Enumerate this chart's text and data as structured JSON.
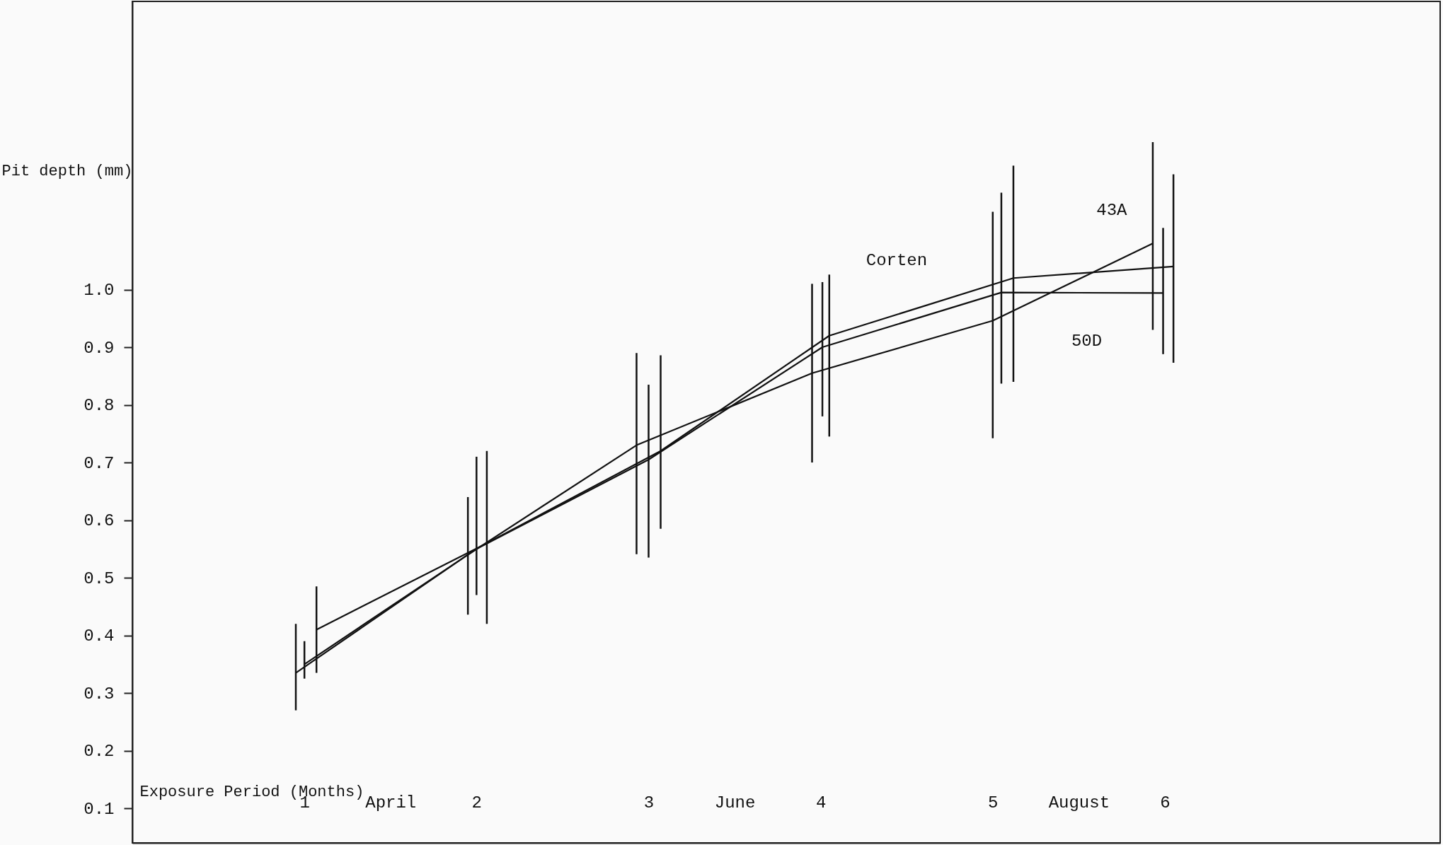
{
  "chart_data": {
    "type": "line",
    "xlabel": "Exposure Period (Months)",
    "ylabel": "Pit depth (mm)",
    "xlim": [
      0,
      7.6
    ],
    "xticks": [
      1,
      2,
      3,
      4,
      5,
      6,
      {
        "value": 1.5,
        "label": "April"
      },
      {
        "value": 3.5,
        "label": "June"
      },
      {
        "value": 5.5,
        "label": "August"
      }
    ],
    "ylim": [
      0.04,
      1.5
    ],
    "yticks": [
      0.1,
      0.2,
      0.3,
      0.4,
      0.5,
      0.6,
      0.7,
      0.8,
      0.9,
      {
        "value": 1,
        "label": "1.0"
      }
    ],
    "grid": false,
    "series": [
      {
        "name": "Corten",
        "color": "#111111",
        "x": [
          1.07,
          2.06,
          3.07,
          4.05,
          5.12,
          6.05
        ],
        "values": [
          0.41,
          0.56,
          0.72,
          0.92,
          1.02,
          1.04
        ],
        "errors": [
          [
            0.335,
            0.485
          ],
          [
            0.42,
            0.72
          ],
          [
            0.585,
            0.886
          ],
          [
            0.745,
            1.026
          ],
          [
            0.84,
            1.215
          ],
          [
            0.873,
            1.2
          ]
        ]
      },
      {
        "name": "43A",
        "color": "#111111",
        "x": [
          0.95,
          1.95,
          2.93,
          3.95,
          5.0,
          5.93
        ],
        "values": [
          0.335,
          0.54,
          0.73,
          0.855,
          0.946,
          1.08
        ],
        "errors": [
          [
            0.27,
            0.42
          ],
          [
            0.436,
            0.64
          ],
          [
            0.541,
            0.89
          ],
          [
            0.7,
            1.01
          ],
          [
            0.742,
            1.135
          ],
          [
            0.93,
            1.256
          ]
        ]
      },
      {
        "name": "50D",
        "color": "#111111",
        "x": [
          1.0,
          2.0,
          3.0,
          4.01,
          5.05,
          5.99
        ],
        "values": [
          0.35,
          0.55,
          0.705,
          0.9,
          0.995,
          0.994
        ],
        "errors": [
          [
            0.325,
            0.39
          ],
          [
            0.47,
            0.71
          ],
          [
            0.535,
            0.835
          ],
          [
            0.78,
            1.013
          ],
          [
            0.837,
            1.168
          ],
          [
            0.888,
            1.107
          ]
        ]
      }
    ]
  }
}
